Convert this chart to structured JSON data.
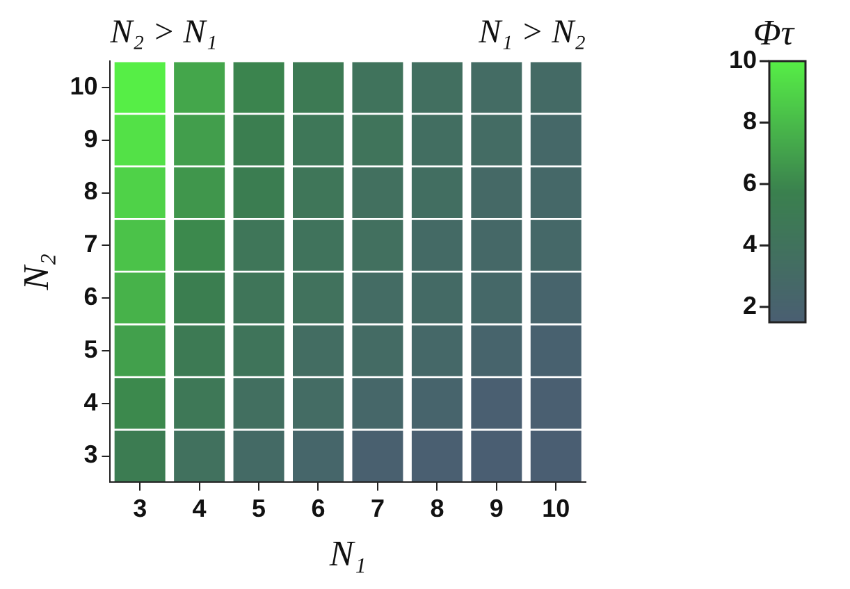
{
  "chart_data": {
    "type": "heatmap",
    "xlabel": "N₁",
    "ylabel": "N₂",
    "clabel": "Φτ",
    "annotations": [
      "N₂ > N₁",
      "N₁ > N₂"
    ],
    "categories": [
      "3",
      "4",
      "5",
      "6",
      "7",
      "8",
      "9",
      "10"
    ],
    "y_categories": [
      "10",
      "9",
      "8",
      "7",
      "6",
      "5",
      "4",
      "3"
    ],
    "cells": [
      [
        10.0,
        7.2,
        5.9,
        5.0,
        4.1,
        3.6,
        3.2,
        3.0
      ],
      [
        9.5,
        6.9,
        5.5,
        4.6,
        4.2,
        3.5,
        3.2,
        2.7
      ],
      [
        8.9,
        6.6,
        5.4,
        4.5,
        3.7,
        3.5,
        2.9,
        2.7
      ],
      [
        8.3,
        6.1,
        4.5,
        4.1,
        3.7,
        3.0,
        2.8,
        2.7
      ],
      [
        7.7,
        5.5,
        4.4,
        4.0,
        3.2,
        3.0,
        2.7,
        2.2
      ],
      [
        7.0,
        5.0,
        4.3,
        3.4,
        3.1,
        2.7,
        2.2,
        1.9
      ],
      [
        6.1,
        4.7,
        3.6,
        3.2,
        2.6,
        2.2,
        1.6,
        1.6
      ],
      [
        5.3,
        3.9,
        3.0,
        2.5,
        1.8,
        1.6,
        1.5,
        1.5
      ]
    ],
    "clim": [
      1.5,
      10
    ],
    "cticks": [
      2,
      4,
      6,
      8,
      10
    ]
  }
}
